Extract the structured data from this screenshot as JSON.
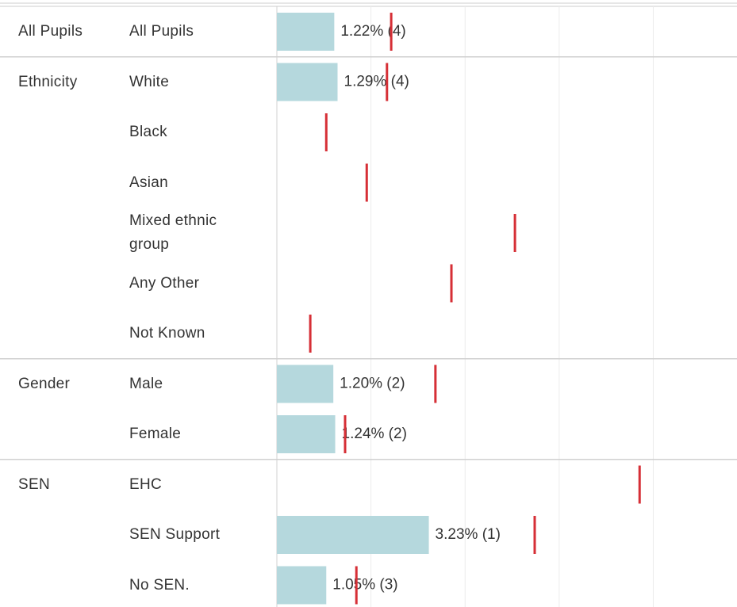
{
  "chart_data": {
    "type": "bar",
    "groups": [
      "All Pupils",
      "Ethnicity",
      null,
      null,
      null,
      null,
      null,
      "Gender",
      null,
      "SEN",
      null,
      null
    ],
    "categories": [
      "All Pupils",
      "White",
      "Black",
      "Asian",
      "Mixed ethnic group",
      "Any Other",
      "Not Known",
      "Male",
      "Female",
      "EHC",
      "SEN Support",
      "No SEN."
    ],
    "values": [
      1.22,
      1.29,
      null,
      null,
      null,
      null,
      null,
      1.2,
      1.24,
      null,
      3.23,
      1.05
    ],
    "value_labels": [
      "1.22% (4)",
      "1.29% (4)",
      null,
      null,
      null,
      null,
      null,
      "1.20% (2)",
      "1.24% (2)",
      null,
      "3.23% (1)",
      "1.05% (3)"
    ],
    "benchmarks": [
      2.43,
      2.34,
      1.05,
      1.91,
      5.06,
      3.71,
      0.71,
      3.37,
      1.45,
      7.71,
      5.48,
      1.69
    ],
    "color": "#b5d8dd",
    "benchmark_color": "#d62f36",
    "xlim": [
      0,
      9.78
    ],
    "xticks": [
      2,
      4,
      6,
      8
    ],
    "grid": true
  }
}
